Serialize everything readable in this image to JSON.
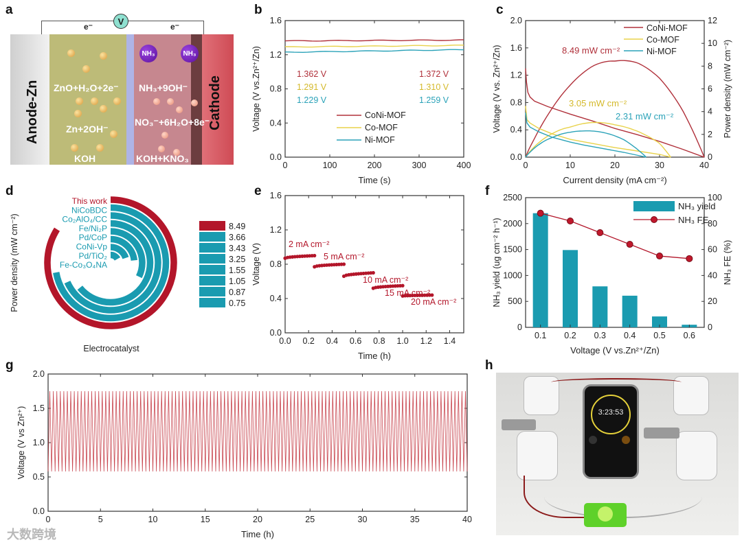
{
  "panel_letters": [
    "a",
    "b",
    "c",
    "d",
    "e",
    "f",
    "g",
    "h"
  ],
  "colors": {
    "coni": "#b0303a",
    "co": "#e8d24a",
    "ni": "#2aa2b8",
    "teal": "#1a9bb0",
    "red": "#b3162a"
  },
  "schematic": {
    "anode_label": "Anode-Zn",
    "cathode_label": "Cathode",
    "voltmeter": "V",
    "electron_left": "e⁻",
    "electron_right": "e⁻",
    "anode_reaction_top": "ZnO+H₂O+2e⁻",
    "anode_reaction_bottom": "Zn+2OH⁻",
    "anode_electrolyte": "KOH",
    "cathode_reaction_top": "NH₃+9OH⁻",
    "cathode_reaction_bottom": "NO₃⁻+6H₂O+8e⁻",
    "cathode_electrolyte": "KOH+KNO₃",
    "nh3_molecule": "NH₃",
    "ion_label": "OH⁻"
  },
  "photo": {
    "timer": "3:23:53"
  },
  "watermark": "大数跨境",
  "chart_data": [
    {
      "panel": "b",
      "type": "line",
      "xlabel": "Time (s)",
      "ylabel": "Voltage (V vs.Zn²⁺/Zn)",
      "xlim": [
        0,
        400
      ],
      "ylim": [
        0,
        1.6
      ],
      "xticks": [
        "0",
        "100",
        "200",
        "300",
        "400"
      ],
      "yticks": [
        "0.0",
        "0.4",
        "0.8",
        "1.2",
        "1.6"
      ],
      "series": [
        {
          "name": "CoNi-MOF",
          "color": "#b0303a",
          "x": [
            0,
            400
          ],
          "y": [
            1.362,
            1.372
          ],
          "start_label": "1.362 V",
          "end_label": "1.372 V"
        },
        {
          "name": "Co-MOF",
          "color": "#e8d24a",
          "x": [
            0,
            400
          ],
          "y": [
            1.291,
            1.31
          ],
          "start_label": "1.291 V",
          "end_label": "1.310 V"
        },
        {
          "name": "Ni-MOF",
          "color": "#2aa2b8",
          "x": [
            0,
            400
          ],
          "y": [
            1.229,
            1.259
          ],
          "start_label": "1.229 V",
          "end_label": "1.259 V"
        }
      ],
      "legend": "bottom-center"
    },
    {
      "panel": "c",
      "type": "line",
      "xlabel": "Current density (mA cm⁻²)",
      "ylabel": "Voltage (V vs. Zn²⁺/Zn)",
      "y2label": "Power density (mW cm⁻²)",
      "xlim": [
        0,
        40
      ],
      "ylim": [
        0,
        2.0
      ],
      "y2lim": [
        0,
        12
      ],
      "xticks": [
        "0",
        "10",
        "20",
        "30",
        "40"
      ],
      "yticks": [
        "0.0",
        "0.4",
        "0.8",
        "1.2",
        "1.6",
        "2.0"
      ],
      "y2ticks": [
        "0",
        "2",
        "4",
        "6",
        "8",
        "10",
        "12"
      ],
      "series": [
        {
          "name": "CoNi-MOF",
          "color": "#b0303a",
          "j": [
            0,
            0.2,
            0.5,
            1,
            2,
            5,
            10,
            15,
            20,
            25,
            30,
            35,
            40
          ],
          "voltage": [
            1.3,
            1.1,
            0.95,
            0.88,
            0.82,
            0.74,
            0.63,
            0.53,
            0.42,
            0.33,
            0.23,
            0.12,
            0
          ],
          "peak_power_label": "8.49 mW cm⁻²",
          "peak_power": 8.49
        },
        {
          "name": "Co-MOF",
          "color": "#e8d24a",
          "j": [
            0,
            0.3,
            1,
            3,
            6,
            10,
            15,
            20,
            25,
            30,
            32.5
          ],
          "voltage": [
            0.75,
            0.55,
            0.5,
            0.42,
            0.34,
            0.26,
            0.2,
            0.14,
            0.09,
            0.04,
            0
          ],
          "peak_power_label": "3.05 mW cm⁻²",
          "peak_power": 3.05
        },
        {
          "name": "Ni-MOF",
          "color": "#2aa2b8",
          "j": [
            0,
            0.3,
            1,
            3,
            6,
            10,
            13,
            17,
            22,
            27
          ],
          "voltage": [
            0.65,
            0.5,
            0.44,
            0.37,
            0.29,
            0.22,
            0.178,
            0.13,
            0.07,
            0
          ],
          "peak_power_label": "2.31 mW cm⁻²",
          "peak_power": 2.31
        }
      ],
      "legend": "top-right"
    },
    {
      "panel": "d",
      "type": "radial-bar",
      "ylabel": "Power density (mW cm⁻²)",
      "xlabel": "Electrocatalyst",
      "categories": [
        "This work",
        "NiCoBDC",
        "Co₂AlO₄/CC",
        "Fe/Ni₂P",
        "Pd/CoP",
        "CoNi-Vp",
        "Pd/TiO₂",
        "Fe-Co₃O₄NA"
      ],
      "values": [
        "8.49",
        "3.66",
        "3.43",
        "3.25",
        "1.55",
        "1.05",
        "0.87",
        "0.75"
      ],
      "highlight": "This work"
    },
    {
      "panel": "e",
      "type": "scatter",
      "xlabel": "Time (h)",
      "ylabel": "Voltage (V)",
      "xlim": [
        0,
        1.52
      ],
      "ylim": [
        0,
        1.6
      ],
      "xticks": [
        "0.0",
        "0.2",
        "0.4",
        "0.6",
        "0.8",
        "1.0",
        "1.2",
        "1.4"
      ],
      "yticks": [
        "0.0",
        "0.4",
        "0.8",
        "1.2",
        "1.6"
      ],
      "segments": [
        {
          "label": "2 mA cm⁻²",
          "t": [
            0,
            0.25
          ],
          "v": [
            0.87,
            0.9
          ]
        },
        {
          "label": "5 mA cm⁻²",
          "t": [
            0.25,
            0.5
          ],
          "v": [
            0.77,
            0.8
          ]
        },
        {
          "label": "10 mA cm⁻²",
          "t": [
            0.5,
            0.75
          ],
          "v": [
            0.66,
            0.7
          ]
        },
        {
          "label": "15 mA cm⁻²",
          "t": [
            0.75,
            1.0
          ],
          "v": [
            0.52,
            0.55
          ]
        },
        {
          "label": "20 mA cm⁻²",
          "t": [
            1.0,
            1.25
          ],
          "v": [
            0.43,
            0.44
          ]
        }
      ]
    },
    {
      "panel": "f",
      "type": "bar",
      "xlabel": "Voltage (V vs.Zn²⁺/Zn)",
      "ylabel": "NH₃ yield (ug cm⁻² h⁻¹)",
      "y2label": "NH₃ FE (%)",
      "categories": [
        "0.1",
        "0.2",
        "0.3",
        "0.4",
        "0.5",
        "0.6"
      ],
      "ylim": [
        0,
        2500
      ],
      "y2lim": [
        0,
        100
      ],
      "yticks": [
        "0",
        "500",
        "1000",
        "1500",
        "2000",
        "2500"
      ],
      "y2ticks": [
        "0",
        "20",
        "40",
        "60",
        "80",
        "100"
      ],
      "series": [
        {
          "name": "NH₃ yield",
          "type": "bar",
          "values": [
            2200,
            1490,
            790,
            610,
            210,
            50
          ]
        },
        {
          "name": "NH₃ FE",
          "type": "line",
          "values": [
            88,
            82,
            73,
            64,
            55,
            53
          ]
        }
      ],
      "legend": "top-right"
    },
    {
      "panel": "g",
      "type": "line",
      "xlabel": "Time (h)",
      "ylabel": "Voltage (V vs Zn²⁺)",
      "xlim": [
        0,
        40
      ],
      "ylim": [
        0,
        2.0
      ],
      "xticks": [
        "0",
        "5",
        "10",
        "15",
        "20",
        "25",
        "30",
        "35",
        "40"
      ],
      "yticks": [
        "0.0",
        "0.5",
        "1.0",
        "1.5",
        "2.0"
      ],
      "cycling": {
        "cycles": 120,
        "v_max": 1.75,
        "v_min": 0.58
      }
    }
  ]
}
